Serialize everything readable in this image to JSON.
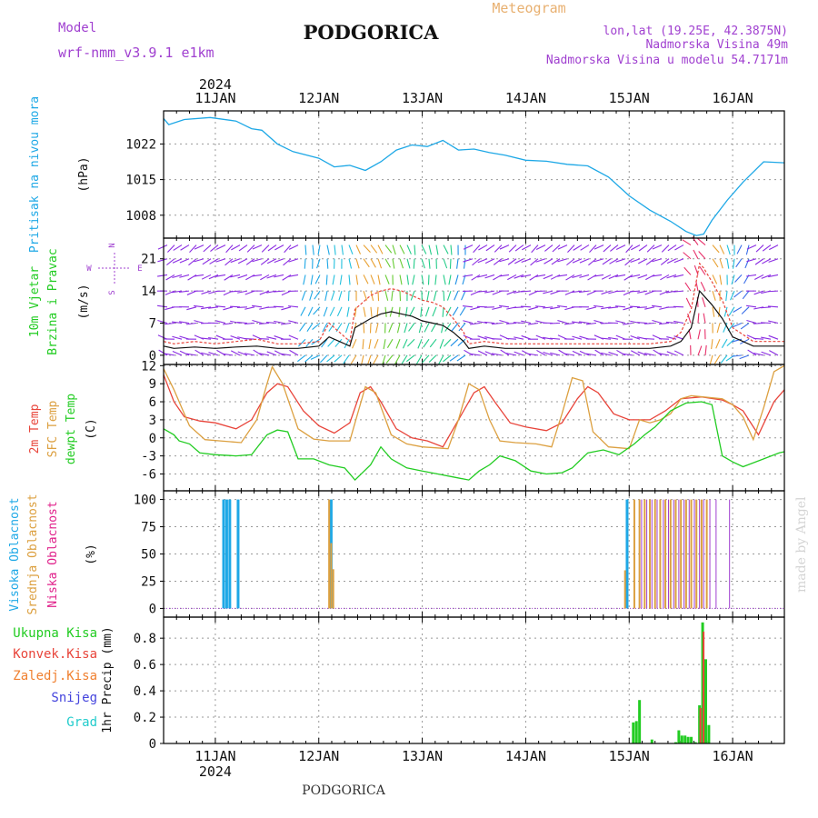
{
  "header": {
    "title": "PODGORICA",
    "meteogram_label": "Meteogram",
    "model_label": "Model",
    "model_name": "wrf-nmm_v3.9.1 e1km",
    "location_lines": [
      "lon,lat (19.25E, 42.3875N)",
      "Nadmorska Visina 49m",
      "Nadmorska Visina u modelu 54.7171m"
    ],
    "footer_station": "PODGORICA",
    "watermark": "made by Angel"
  },
  "colors": {
    "pressure": "#1ea8e6",
    "wind_label": "#22cc22",
    "temp2m": "#e8443a",
    "sfc": "#dca040",
    "dewpt": "#22cc22",
    "high_cloud": "#1ea8e6",
    "mid_cloud": "#dca040",
    "low_cloud": "#e0208a",
    "total_precip": "#22cc22",
    "conv_precip": "#e8443a",
    "frz_precip": "#f08030",
    "snow": "#4444dd",
    "hail": "#22cccc",
    "purple": "#a040d0",
    "grid": "#999999"
  },
  "chart_data": [
    {
      "type": "line",
      "panel": "pressure",
      "ylabel_lines": [
        "Pritisak na nivou mora",
        "(hPa)"
      ],
      "yticks": [
        1008,
        1015,
        1022
      ],
      "ylim": [
        1003.5,
        1028.5
      ],
      "xlim": [
        10.5,
        16.5
      ],
      "x_date_labels": [
        "11JAN",
        "12JAN",
        "13JAN",
        "14JAN",
        "15JAN",
        "16JAN"
      ],
      "x_year_label": "2024",
      "series": [
        {
          "color_key": "pressure",
          "x": [
            10.5,
            10.55,
            10.7,
            10.95,
            11.2,
            11.35,
            11.45,
            11.6,
            11.75,
            12.0,
            12.15,
            12.3,
            12.45,
            12.6,
            12.75,
            12.9,
            13.05,
            13.2,
            13.35,
            13.5,
            13.65,
            13.8,
            14.0,
            14.2,
            14.4,
            14.6,
            14.8,
            15.0,
            15.2,
            15.4,
            15.55,
            15.65,
            15.72,
            15.8,
            15.95,
            16.1,
            16.3,
            16.5
          ],
          "y": [
            1027,
            1025.8,
            1026.8,
            1027.2,
            1026.5,
            1025,
            1024.7,
            1022,
            1020.5,
            1019.2,
            1017.5,
            1017.8,
            1016.8,
            1018.5,
            1020.8,
            1021.8,
            1021.5,
            1022.7,
            1020.8,
            1021.0,
            1020.3,
            1019.8,
            1018.8,
            1018.6,
            1018.0,
            1017.7,
            1015.5,
            1011.8,
            1009.0,
            1006.8,
            1004.8,
            1004.0,
            1004.3,
            1007.0,
            1011.0,
            1014.5,
            1018.5,
            1018.3
          ]
        }
      ]
    },
    {
      "type": "line",
      "panel": "wind",
      "ylabel_lines": [
        "10m Vjetar",
        "Brzina i Pravac",
        "(m/s)"
      ],
      "compass": [
        "N",
        "E",
        "S",
        "W"
      ],
      "yticks": [
        0,
        7,
        14,
        21
      ],
      "ylim": [
        -2,
        25.5
      ],
      "xlim": [
        10.5,
        16.5
      ],
      "series": [
        {
          "name": "speed",
          "color": "#111111",
          "x": [
            10.5,
            10.6,
            10.8,
            11.0,
            11.2,
            11.4,
            11.6,
            11.8,
            12.0,
            12.1,
            12.2,
            12.3,
            12.35,
            12.5,
            12.6,
            12.7,
            12.8,
            12.9,
            13.0,
            13.1,
            13.2,
            13.3,
            13.4,
            13.45,
            13.6,
            13.8,
            14.0,
            14.2,
            14.4,
            14.6,
            14.8,
            15.0,
            15.2,
            15.4,
            15.5,
            15.6,
            15.68,
            15.72,
            15.8,
            15.9,
            16.0,
            16.1,
            16.2,
            16.3,
            16.4,
            16.5
          ],
          "y": [
            2,
            1.5,
            1.8,
            1.5,
            1.8,
            2,
            1.5,
            1.5,
            2,
            4,
            3,
            2,
            6,
            8,
            9,
            9.5,
            9,
            8.5,
            7.5,
            7,
            6.5,
            5,
            3,
            1.5,
            2,
            1.5,
            1.5,
            1.5,
            1.5,
            1.5,
            1.5,
            1.5,
            1.5,
            2,
            3,
            6,
            14,
            13,
            11,
            8,
            4,
            3,
            2,
            2,
            2,
            2
          ]
        },
        {
          "name": "gust",
          "color": "#e8443a",
          "x": [
            10.5,
            10.6,
            10.8,
            11.0,
            11.2,
            11.4,
            11.6,
            11.8,
            12.0,
            12.1,
            12.2,
            12.3,
            12.35,
            12.5,
            12.6,
            12.7,
            12.8,
            12.9,
            13.0,
            13.1,
            13.2,
            13.3,
            13.4,
            13.45,
            13.6,
            13.8,
            14.0,
            14.2,
            14.4,
            14.6,
            14.8,
            15.0,
            15.2,
            15.4,
            15.5,
            15.6,
            15.68,
            15.72,
            15.8,
            15.9,
            16.0,
            16.1,
            16.2,
            16.3,
            16.4,
            16.5
          ],
          "y": [
            3,
            2.5,
            3,
            2.5,
            3,
            3.5,
            2.5,
            2.5,
            3,
            7,
            5,
            3,
            10,
            13,
            14,
            14.5,
            14,
            13,
            12,
            11.5,
            10.5,
            8,
            5,
            2.5,
            3,
            2.5,
            2.5,
            2.5,
            2.5,
            2.5,
            2.5,
            2.5,
            2.5,
            3,
            5,
            10,
            20,
            19,
            16,
            12,
            6,
            4.5,
            3,
            3,
            3,
            3
          ]
        }
      ]
    },
    {
      "type": "line",
      "panel": "temperature",
      "ylabel_lines": [
        "2m Temp",
        "SFC Temp",
        "dewpt Temp",
        "(C)"
      ],
      "yticks": [
        -6,
        -3,
        0,
        3,
        6,
        9,
        12
      ],
      "ylim": [
        -8.8,
        12.2
      ],
      "xlim": [
        10.5,
        16.5
      ],
      "series": [
        {
          "name": "2m Temp",
          "color_key": "temp2m",
          "x": [
            10.5,
            10.6,
            10.7,
            10.85,
            11.0,
            11.2,
            11.35,
            11.5,
            11.6,
            11.7,
            11.85,
            12.0,
            12.15,
            12.3,
            12.4,
            12.5,
            12.6,
            12.75,
            12.9,
            13.05,
            13.2,
            13.35,
            13.5,
            13.6,
            13.7,
            13.85,
            14.0,
            14.2,
            14.35,
            14.5,
            14.6,
            14.7,
            14.85,
            15.0,
            15.2,
            15.35,
            15.5,
            15.7,
            15.9,
            16.0,
            16.1,
            16.25,
            16.4,
            16.5
          ],
          "y": [
            10.5,
            6,
            3.5,
            2.8,
            2.5,
            1.5,
            3,
            7.5,
            9,
            8.5,
            4.5,
            2,
            0.8,
            2.5,
            7.5,
            8.5,
            6,
            1.5,
            0,
            -0.5,
            -1.5,
            3,
            7.5,
            8.5,
            6,
            2.5,
            1.8,
            1.2,
            2.5,
            6.5,
            8.5,
            7.5,
            4,
            3,
            3,
            4.5,
            6.5,
            6.8,
            6.3,
            5.5,
            4.5,
            0.5,
            6,
            8
          ]
        },
        {
          "name": "SFC Temp",
          "color_key": "sfc",
          "x": [
            10.5,
            10.6,
            10.75,
            10.9,
            11.05,
            11.25,
            11.4,
            11.5,
            11.55,
            11.65,
            11.8,
            11.95,
            12.1,
            12.3,
            12.45,
            12.55,
            12.7,
            12.85,
            13.0,
            13.25,
            13.35,
            13.45,
            13.55,
            13.65,
            13.75,
            13.9,
            14.1,
            14.25,
            14.35,
            14.45,
            14.55,
            14.65,
            14.8,
            15.0,
            15.1,
            15.2,
            15.3,
            15.4,
            15.5,
            15.6,
            15.9,
            16.0,
            16.1,
            16.2,
            16.3,
            16.4,
            16.5
          ],
          "y": [
            11.5,
            8,
            2,
            -0.3,
            -0.5,
            -0.8,
            3,
            9,
            11.8,
            9,
            1.5,
            -0.2,
            -0.5,
            -0.5,
            8.5,
            7.5,
            0.5,
            -1,
            -1.5,
            -1.8,
            3,
            9,
            8,
            3,
            -0.5,
            -0.8,
            -1,
            -1.5,
            4,
            10,
            9.5,
            1,
            -1.5,
            -1.8,
            3,
            2.5,
            3,
            4,
            6.5,
            7,
            6.5,
            5.5,
            3.5,
            -0.3,
            5,
            11,
            12
          ]
        },
        {
          "name": "dewpt Temp",
          "color_key": "dewpt",
          "x": [
            10.5,
            10.6,
            10.65,
            10.75,
            10.85,
            11.0,
            11.2,
            11.35,
            11.5,
            11.6,
            11.7,
            11.8,
            11.95,
            12.1,
            12.25,
            12.35,
            12.5,
            12.6,
            12.7,
            12.85,
            13.0,
            13.15,
            13.3,
            13.45,
            13.55,
            13.65,
            13.75,
            13.9,
            14.05,
            14.2,
            14.35,
            14.45,
            14.6,
            14.75,
            14.9,
            15.05,
            15.15,
            15.25,
            15.4,
            15.55,
            15.7,
            15.8,
            15.9,
            16.0,
            16.1,
            16.3,
            16.45,
            16.5
          ],
          "y": [
            1.5,
            0.5,
            -0.5,
            -1,
            -2.5,
            -2.8,
            -3,
            -2.8,
            0.5,
            1.3,
            1,
            -3.5,
            -3.5,
            -4.5,
            -5,
            -7,
            -4.5,
            -1.5,
            -3.5,
            -5,
            -5.5,
            -6,
            -6.5,
            -7,
            -5.5,
            -4.5,
            -3,
            -3.8,
            -5.5,
            -6,
            -5.8,
            -5,
            -2.5,
            -2,
            -2.8,
            -1,
            0.5,
            1.8,
            4.5,
            5.8,
            6,
            5.5,
            -3,
            -4,
            -4.8,
            -3.5,
            -2.5,
            -2.3
          ]
        }
      ]
    },
    {
      "type": "bar",
      "panel": "cloud",
      "ylabel_lines": [
        "Visoka Oblacnost",
        "Srednja Oblacnost",
        "Niska  Oblacnost",
        "(%)"
      ],
      "yticks": [
        0,
        25,
        50,
        75,
        100
      ],
      "ylim": [
        -8,
        108
      ],
      "xlim": [
        10.5,
        16.5
      ],
      "series": [
        {
          "name": "Visoka Oblacnost",
          "color_key": "high_cloud",
          "width": 3,
          "x": [
            11.08,
            11.11,
            11.14,
            11.22,
            12.12,
            14.98
          ],
          "y": [
            100,
            100,
            100,
            100,
            100,
            100
          ]
        },
        {
          "name": "Srednja Oblacnost",
          "color_key": "mid_cloud",
          "width": 2,
          "x": [
            12.1,
            12.12,
            12.14,
            14.96,
            15.05,
            15.1,
            15.15,
            15.2,
            15.25,
            15.3,
            15.35,
            15.4,
            15.45,
            15.5,
            15.55,
            15.6,
            15.65,
            15.7,
            15.75
          ],
          "y": [
            100,
            60,
            36,
            35,
            100,
            100,
            100,
            100,
            100,
            100,
            100,
            100,
            100,
            100,
            100,
            100,
            100,
            100,
            100
          ]
        },
        {
          "name": "Niska Oblacnost",
          "color": "#a040d0",
          "width": 1,
          "x": [
            15.12,
            15.17,
            15.22,
            15.27,
            15.33,
            15.38,
            15.43,
            15.48,
            15.53,
            15.58,
            15.63,
            15.68,
            15.72,
            15.78,
            15.84,
            15.97
          ],
          "y": [
            100,
            100,
            100,
            100,
            100,
            100,
            100,
            100,
            100,
            100,
            100,
            100,
            100,
            100,
            100,
            100
          ]
        }
      ]
    },
    {
      "type": "bar",
      "panel": "precip",
      "ylabel_lines": [
        "1hr Precip (mm)"
      ],
      "legend": [
        "Ukupna  Kisa",
        "Konvek.Kisa",
        "Zaledj.Kisa",
        "Snijeg",
        "Grad"
      ],
      "yticks": [
        0,
        0.2,
        0.4,
        0.6,
        0.8
      ],
      "ylim": [
        0,
        0.96
      ],
      "xlim": [
        10.5,
        16.5
      ],
      "series": [
        {
          "name": "Ukupna  Kisa",
          "color_key": "total_precip",
          "x": [
            15.04,
            15.07,
            15.1,
            15.22,
            15.45,
            15.48,
            15.51,
            15.54,
            15.57,
            15.6,
            15.64,
            15.68,
            15.71,
            15.74,
            15.77
          ],
          "y": [
            0.16,
            0.17,
            0.33,
            0.03,
            0.01,
            0.1,
            0.06,
            0.06,
            0.05,
            0.05,
            0.01,
            0.29,
            0.92,
            0.64,
            0.14
          ]
        },
        {
          "name": "Konvek.Kisa",
          "color_key": "conv_precip",
          "x": [
            15.68,
            15.71
          ],
          "y": [
            0.27,
            0.85
          ]
        }
      ]
    }
  ]
}
